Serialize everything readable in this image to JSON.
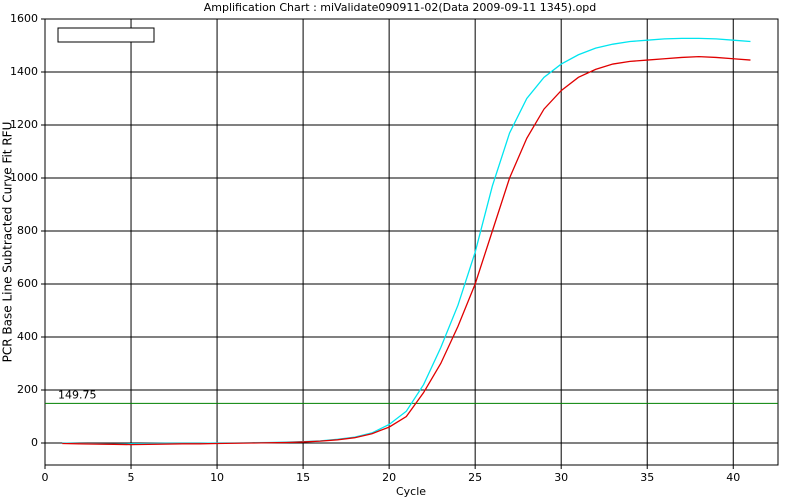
{
  "chart_data": {
    "type": "line",
    "title": "Amplification Chart : miValidate090911-02(Data 2009-09-11 1345).opd",
    "x_label": "Cycle",
    "y_label": "PCR Base Line Subtracted Curve Fit RFU",
    "x": [
      1,
      2,
      3,
      4,
      5,
      6,
      7,
      8,
      9,
      10,
      11,
      12,
      13,
      14,
      15,
      16,
      17,
      18,
      19,
      20,
      21,
      22,
      23,
      24,
      25,
      26,
      27,
      28,
      29,
      30,
      31,
      32,
      33,
      34,
      35,
      36,
      37,
      38,
      39,
      40,
      41
    ],
    "series": [
      {
        "color": "#00e5f0",
        "values": [
          0,
          -2,
          -3,
          -4,
          -3,
          -2,
          -1,
          -1,
          -1,
          0,
          0,
          1,
          2,
          3,
          5,
          8,
          14,
          22,
          38,
          70,
          120,
          220,
          360,
          520,
          720,
          970,
          1170,
          1300,
          1380,
          1430,
          1465,
          1490,
          1505,
          1515,
          1520,
          1525,
          1527,
          1527,
          1525,
          1520,
          1515
        ]
      },
      {
        "color": "#e00000",
        "values": [
          -2,
          -3,
          -4,
          -5,
          -6,
          -5,
          -4,
          -3,
          -3,
          -2,
          -1,
          0,
          1,
          2,
          4,
          7,
          12,
          20,
          35,
          60,
          100,
          190,
          300,
          440,
          600,
          800,
          1000,
          1150,
          1260,
          1330,
          1380,
          1410,
          1430,
          1440,
          1445,
          1450,
          1455,
          1458,
          1455,
          1450,
          1445
        ]
      }
    ],
    "threshold": 149.75,
    "threshold_color": "#008000",
    "xlim": [
      0,
      42.6
    ],
    "ylim": [
      -83,
      1600
    ],
    "xticks": [
      0,
      5,
      10,
      15,
      20,
      25,
      30,
      35,
      40
    ],
    "yticks": [
      0,
      200,
      400,
      600,
      800,
      1000,
      1200,
      1400,
      1600
    ],
    "grid": true
  }
}
